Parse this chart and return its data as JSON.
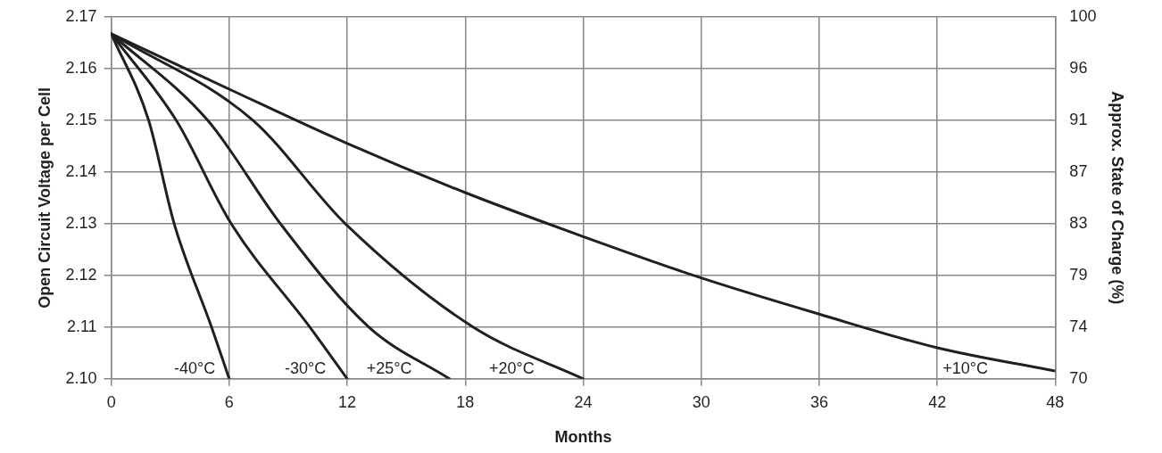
{
  "chart_data": {
    "type": "line",
    "xlabel": "Months",
    "ylabel": "Open Circuit Voltage per Cell",
    "y2label": "Approx. State of Charge (%)",
    "xlim": [
      0,
      48
    ],
    "xticks": [
      0,
      6,
      12,
      18,
      24,
      30,
      36,
      42,
      48
    ],
    "ylim": [
      2.1,
      2.17
    ],
    "yticks": [
      {
        "value": 2.1,
        "label": "2.10"
      },
      2.11,
      2.12,
      2.13,
      2.14,
      2.15,
      2.16,
      2.17
    ],
    "y2lim": [
      70,
      100
    ],
    "y2ticks": [
      70,
      {
        "value": 74.29,
        "label": "74"
      },
      {
        "value": 78.57,
        "label": "79"
      },
      {
        "value": 82.86,
        "label": "83"
      },
      {
        "value": 87.14,
        "label": "87"
      },
      {
        "value": 91.43,
        "label": "91"
      },
      {
        "value": 95.71,
        "label": "96"
      },
      100
    ],
    "grid": true,
    "legend": false,
    "marker": "none",
    "line_style": "solid",
    "series": [
      {
        "name": "-40°C",
        "color": "#231f20",
        "x": [
          0,
          1.9,
          3.2,
          5.1,
          6
        ],
        "values": [
          2.1667,
          2.15,
          2.13,
          2.11,
          2.1
        ]
      },
      {
        "name": "-30°C",
        "color": "#231f20",
        "x": [
          0,
          3.3,
          6.1,
          10.1,
          12
        ],
        "values": [
          2.1667,
          2.15,
          2.13,
          2.11,
          2.1
        ]
      },
      {
        "name": "+25°C",
        "color": "#231f20",
        "x": [
          0,
          4.9,
          8.6,
          13.1,
          17.2
        ],
        "values": [
          2.1667,
          2.15,
          2.13,
          2.11,
          2.1
        ]
      },
      {
        "name": "+20°C",
        "color": "#231f20",
        "x": [
          0,
          7.2,
          11.9,
          18.4,
          24
        ],
        "values": [
          2.1667,
          2.15,
          2.13,
          2.11,
          2.1
        ]
      },
      {
        "name": "+10°C",
        "color": "#231f20",
        "x": [
          0,
          6,
          12,
          18,
          24,
          30,
          36,
          42,
          48
        ],
        "values": [
          2.1667,
          2.156,
          2.1455,
          2.136,
          2.1275,
          2.1195,
          2.1125,
          2.106,
          2.1015
        ]
      }
    ]
  }
}
